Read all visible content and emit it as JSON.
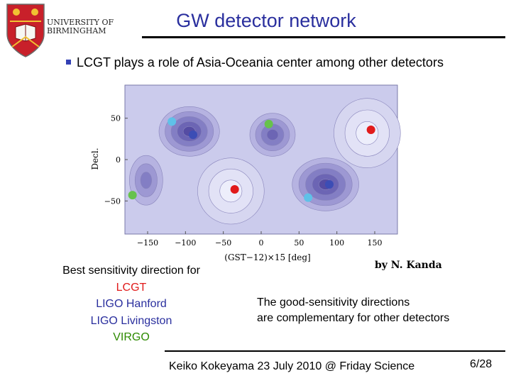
{
  "header": {
    "title": "GW detector network",
    "logo": {
      "line1": "UNIVERSITY OF",
      "line2": "BIRMINGHAM"
    }
  },
  "bullet": "LCGT plays a role of Asia-Oceania center among other detectors",
  "chart_data": {
    "type": "contour",
    "title": "",
    "xlabel": "(GST−12)×15 [deg]",
    "ylabel": "Decl.",
    "xlim": [
      -180,
      180
    ],
    "ylim": [
      -90,
      90
    ],
    "xticks": [
      -150,
      -100,
      -50,
      0,
      50,
      100,
      150
    ],
    "xtick_labels": [
      "−150",
      "−100",
      "−50",
      "0",
      "50",
      "100",
      "150"
    ],
    "yticks": [
      50,
      0,
      -50
    ],
    "ytick_labels": [
      "50",
      "0",
      "−50"
    ],
    "points": [
      {
        "name": "LCGT",
        "x": 145,
        "y": 36,
        "color": "#e11b1b"
      },
      {
        "name": "LCGT",
        "x": -35,
        "y": -36,
        "color": "#e11b1b"
      },
      {
        "name": "LIGO Hanford",
        "x": -118,
        "y": 46,
        "color": "#5fc1e8"
      },
      {
        "name": "LIGO Hanford",
        "x": 62,
        "y": -46,
        "color": "#5fc1e8"
      },
      {
        "name": "LIGO Livingston",
        "x": -90,
        "y": 30,
        "color": "#3c4db5"
      },
      {
        "name": "LIGO Livingston",
        "x": 90,
        "y": -30,
        "color": "#3c4db5"
      },
      {
        "name": "VIRGO",
        "x": 10,
        "y": 43,
        "color": "#67c24c"
      },
      {
        "name": "VIRGO",
        "x": -170,
        "y": -43,
        "color": "#67c24c"
      }
    ]
  },
  "legend": {
    "heading": "Best sensitivity direction for",
    "items": [
      "LCGT",
      "LIGO Hanford",
      "LIGO Livingston",
      "VIRGO"
    ]
  },
  "credit": "by N. Kanda",
  "note": {
    "line1": "The good-sensitivity directions",
    "line2": "are complementary for other detectors"
  },
  "footer": "Keiko Kokeyama 23 July 2010 @ Friday Science",
  "page": "6/28",
  "colors": {
    "title": "#2a2f9e",
    "lcgt": "#e11b1b",
    "hanford": "#2a2f9e",
    "virgo": "#2d8a00",
    "logo_red": "#c8202a",
    "logo_gold": "#f1c232"
  }
}
